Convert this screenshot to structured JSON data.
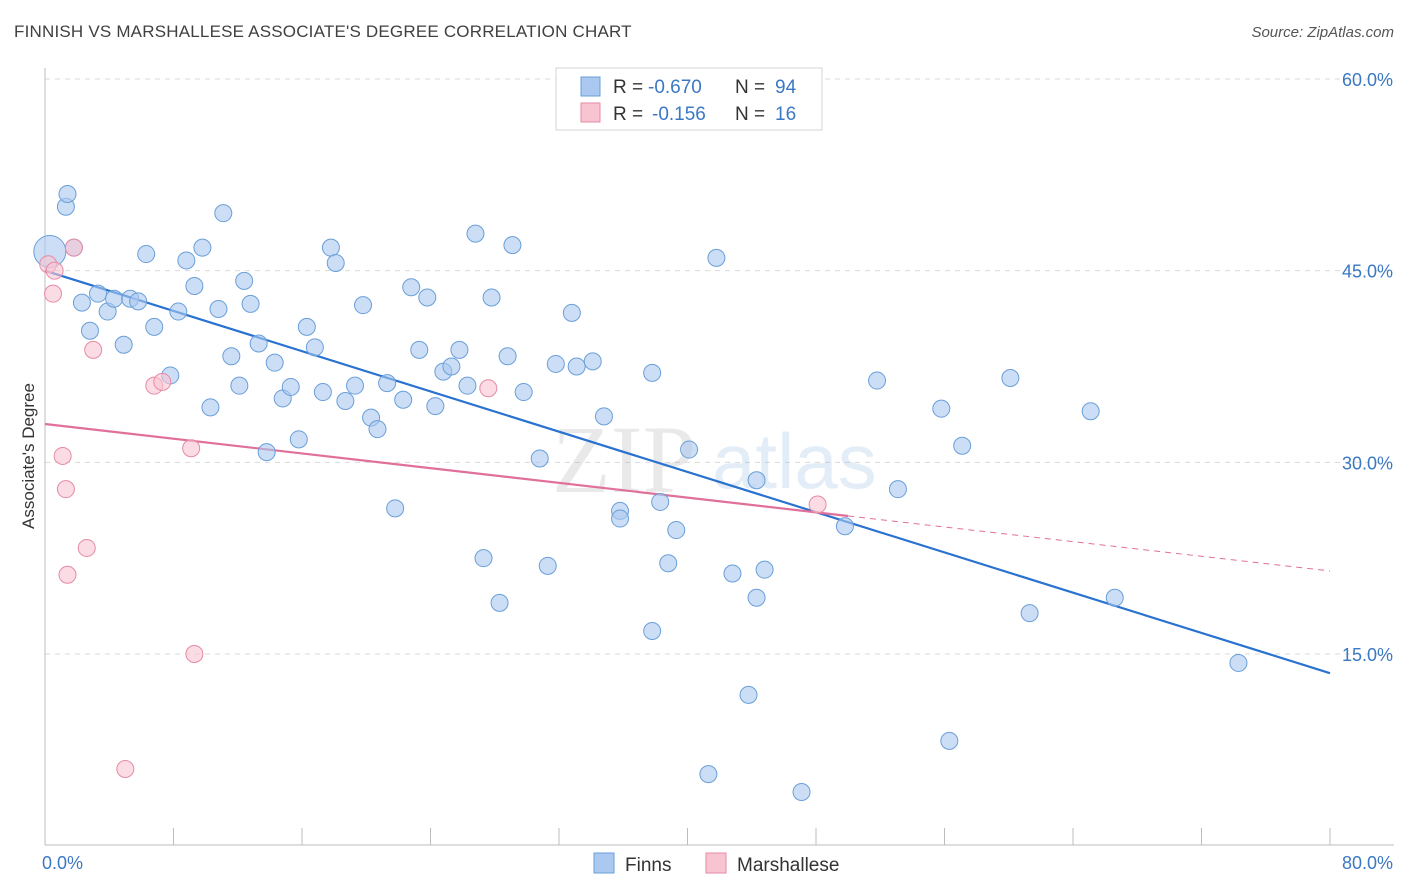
{
  "header": {
    "title": "FINNISH VS MARSHALLESE ASSOCIATE'S DEGREE CORRELATION CHART",
    "source": "Source: ZipAtlas.com"
  },
  "legend": {
    "rows": [
      {
        "r_label": "R =",
        "r_value": "-0.670",
        "n_label": "N =",
        "n_value": "94",
        "color": "#aac8f0",
        "stroke": "#6a9fd8"
      },
      {
        "r_label": "R =",
        "r_value": "-0.156",
        "n_label": "N =",
        "n_value": "16",
        "color": "#f8c4d2",
        "stroke": "#e68aa5"
      }
    ]
  },
  "watermark": {
    "zip": "ZIP",
    "atlas": "atlas"
  },
  "chart_data": {
    "type": "scatter",
    "title": "FINNISH VS MARSHALLESE ASSOCIATE'S DEGREE CORRELATION CHART",
    "xlabel": "",
    "ylabel": "Associate's Degree",
    "xlim": [
      0,
      80
    ],
    "ylim": [
      0,
      62
    ],
    "x_tick_labels": [
      "0.0%",
      "80.0%"
    ],
    "y_ticks": [
      15,
      30,
      45,
      60
    ],
    "y_tick_labels": [
      "15.0%",
      "30.0%",
      "45.0%",
      "60.0%"
    ],
    "grid": true,
    "legend_position": "top-center",
    "series": [
      {
        "name": "Finns",
        "color": "#aac8f0",
        "stroke": "#6a9fd8",
        "line_color": "#2a72d0",
        "trend": {
          "x0": 0,
          "y0": 45.0,
          "x1": 80,
          "y1": 13.5
        },
        "points": [
          [
            0.3,
            46.5
          ],
          [
            1.3,
            50.0
          ],
          [
            1.4,
            51.0
          ],
          [
            1.8,
            46.8
          ],
          [
            2.3,
            42.5
          ],
          [
            2.8,
            40.3
          ],
          [
            3.3,
            43.2
          ],
          [
            3.9,
            41.8
          ],
          [
            4.3,
            42.8
          ],
          [
            4.9,
            39.2
          ],
          [
            5.3,
            42.8
          ],
          [
            5.8,
            42.6
          ],
          [
            6.3,
            46.3
          ],
          [
            6.8,
            40.6
          ],
          [
            7.8,
            36.8
          ],
          [
            8.3,
            41.8
          ],
          [
            8.8,
            45.8
          ],
          [
            9.3,
            43.8
          ],
          [
            9.8,
            46.8
          ],
          [
            10.3,
            34.3
          ],
          [
            10.8,
            42.0
          ],
          [
            11.1,
            49.5
          ],
          [
            11.6,
            38.3
          ],
          [
            12.1,
            36.0
          ],
          [
            12.4,
            44.2
          ],
          [
            12.8,
            42.4
          ],
          [
            13.3,
            39.3
          ],
          [
            13.8,
            30.8
          ],
          [
            14.3,
            37.8
          ],
          [
            14.8,
            35.0
          ],
          [
            15.3,
            35.9
          ],
          [
            15.8,
            31.8
          ],
          [
            16.3,
            40.6
          ],
          [
            16.8,
            39.0
          ],
          [
            17.3,
            35.5
          ],
          [
            17.8,
            46.8
          ],
          [
            18.1,
            45.6
          ],
          [
            18.7,
            34.8
          ],
          [
            19.3,
            36.0
          ],
          [
            19.8,
            42.3
          ],
          [
            20.3,
            33.5
          ],
          [
            20.7,
            32.6
          ],
          [
            21.3,
            36.2
          ],
          [
            21.8,
            26.4
          ],
          [
            22.3,
            34.9
          ],
          [
            22.8,
            43.7
          ],
          [
            23.3,
            38.8
          ],
          [
            23.8,
            42.9
          ],
          [
            24.3,
            34.4
          ],
          [
            24.8,
            37.1
          ],
          [
            25.3,
            37.5
          ],
          [
            25.8,
            38.8
          ],
          [
            26.3,
            36.0
          ],
          [
            26.8,
            47.9
          ],
          [
            27.3,
            22.5
          ],
          [
            27.8,
            42.9
          ],
          [
            28.3,
            19.0
          ],
          [
            28.8,
            38.3
          ],
          [
            29.1,
            47.0
          ],
          [
            29.8,
            35.5
          ],
          [
            30.8,
            30.3
          ],
          [
            31.3,
            21.9
          ],
          [
            31.8,
            37.7
          ],
          [
            32.8,
            41.7
          ],
          [
            33.1,
            37.5
          ],
          [
            34.1,
            37.9
          ],
          [
            34.8,
            33.6
          ],
          [
            35.8,
            26.2
          ],
          [
            35.8,
            25.6
          ],
          [
            37.8,
            16.8
          ],
          [
            37.8,
            37.0
          ],
          [
            38.3,
            26.9
          ],
          [
            38.8,
            22.1
          ],
          [
            39.3,
            24.7
          ],
          [
            40.1,
            31.0
          ],
          [
            41.3,
            5.6
          ],
          [
            41.8,
            46.0
          ],
          [
            42.8,
            21.3
          ],
          [
            43.8,
            11.8
          ],
          [
            44.3,
            28.6
          ],
          [
            44.3,
            19.4
          ],
          [
            44.8,
            21.6
          ],
          [
            47.1,
            4.2
          ],
          [
            49.8,
            25.0
          ],
          [
            51.8,
            36.4
          ],
          [
            53.1,
            27.9
          ],
          [
            55.8,
            34.2
          ],
          [
            56.3,
            8.2
          ],
          [
            57.1,
            31.3
          ],
          [
            60.1,
            36.6
          ],
          [
            61.3,
            18.2
          ],
          [
            65.1,
            34.0
          ],
          [
            66.6,
            19.4
          ],
          [
            74.3,
            14.3
          ]
        ]
      },
      {
        "name": "Marshallese",
        "color": "#f8c4d2",
        "stroke": "#e68aa5",
        "line_color": "#e0709a",
        "trend": {
          "x0": 0,
          "y0": 33.0,
          "x1": 50,
          "y1": 25.8,
          "dash_x1": 80,
          "dash_y1": 21.5
        },
        "points": [
          [
            0.2,
            45.5
          ],
          [
            0.6,
            45.0
          ],
          [
            0.5,
            43.2
          ],
          [
            1.8,
            46.8
          ],
          [
            1.1,
            30.5
          ],
          [
            1.3,
            27.9
          ],
          [
            1.4,
            21.2
          ],
          [
            2.6,
            23.3
          ],
          [
            3.0,
            38.8
          ],
          [
            5.0,
            6.0
          ],
          [
            6.8,
            36.0
          ],
          [
            7.3,
            36.3
          ],
          [
            9.1,
            31.1
          ],
          [
            9.3,
            15.0
          ],
          [
            27.6,
            35.8
          ],
          [
            48.1,
            26.7
          ]
        ]
      }
    ]
  }
}
